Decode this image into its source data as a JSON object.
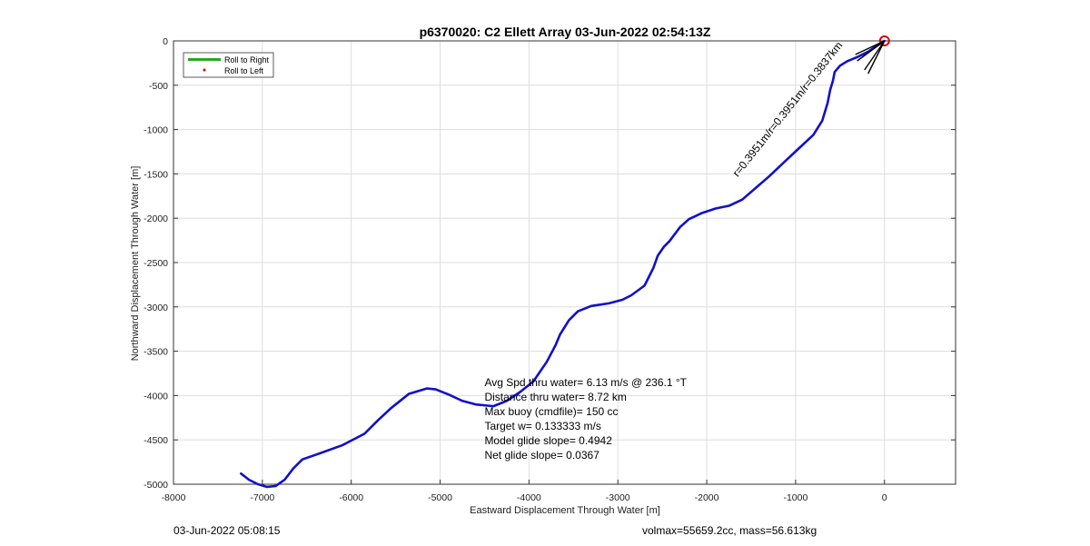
{
  "chart_data": {
    "type": "line",
    "title": "p6370020: C2 Ellett Array 03-Jun-2022 02:54:13Z",
    "xlabel": "Eastward Displacement Through Water [m]",
    "ylabel": "Northward Displacement Through Water [m]",
    "xlim": [
      -8000,
      800
    ],
    "ylim": [
      -5000,
      0
    ],
    "xticks": [
      -8000,
      -7000,
      -6000,
      -5000,
      -4000,
      -3000,
      -2000,
      -1000,
      0
    ],
    "yticks": [
      0,
      -500,
      -1000,
      -1500,
      -2000,
      -2500,
      -3000,
      -3500,
      -4000,
      -4500,
      -5000
    ],
    "grid": true,
    "legend_position": "top-left",
    "legend": [
      {
        "label": "Roll to Right",
        "color": "#22aa22",
        "style": "line"
      },
      {
        "label": "Roll to Left",
        "color": "#dd0000",
        "style": "dot"
      }
    ],
    "series": [
      {
        "color": "#1010cc",
        "x": [
          -7240,
          -7150,
          -7050,
          -6950,
          -6850,
          -6750,
          -6650,
          -6550,
          -6350,
          -6100,
          -5850,
          -5700,
          -5550,
          -5350,
          -5150,
          -5050,
          -4900,
          -4750,
          -4600,
          -4400,
          -4250,
          -4100,
          -3950,
          -3800,
          -3700,
          -3650,
          -3600,
          -3550,
          -3450,
          -3300,
          -3100,
          -2950,
          -2850,
          -2700,
          -2600,
          -2550,
          -2480,
          -2420,
          -2300,
          -2200,
          -2050,
          -1900,
          -1750,
          -1600,
          -1450,
          -1300,
          -1100,
          -950,
          -800,
          -700,
          -640,
          -610,
          -580,
          -560,
          -500,
          -420,
          -300,
          -180,
          -80,
          0
        ],
        "y": [
          -4880,
          -4950,
          -5000,
          -5030,
          -5020,
          -4950,
          -4820,
          -4720,
          -4650,
          -4560,
          -4430,
          -4280,
          -4140,
          -3980,
          -3920,
          -3930,
          -3990,
          -4060,
          -4100,
          -4120,
          -4060,
          -3960,
          -3840,
          -3620,
          -3430,
          -3310,
          -3230,
          -3150,
          -3050,
          -2990,
          -2960,
          -2920,
          -2870,
          -2760,
          -2560,
          -2420,
          -2320,
          -2260,
          -2100,
          -2010,
          -1940,
          -1890,
          -1860,
          -1790,
          -1660,
          -1530,
          -1340,
          -1200,
          -1060,
          -900,
          -700,
          -550,
          -450,
          -350,
          -280,
          -230,
          -180,
          -120,
          -50,
          0
        ]
      }
    ],
    "annotations": {
      "direction_label": "r=0.3951m/r=0.3951m/r=0.3837km",
      "stats": [
        "Avg Spd thru water=  6.13 m/s @ 236.1 °T",
        "Distance thru water=  8.72 km",
        "Max buoy (cmdfile)= 150 cc",
        "Target w= 0.133333 m/s",
        "Model glide slope= 0.4942",
        "Net glide slope= 0.0367"
      ]
    }
  },
  "footer": {
    "left": "03-Jun-2022 05:08:15",
    "right": "volmax=55659.2cc, mass=56.613kg"
  },
  "colors": {
    "track": "#1010cc",
    "grid": "#dddddd",
    "marker": "#dd0000"
  }
}
